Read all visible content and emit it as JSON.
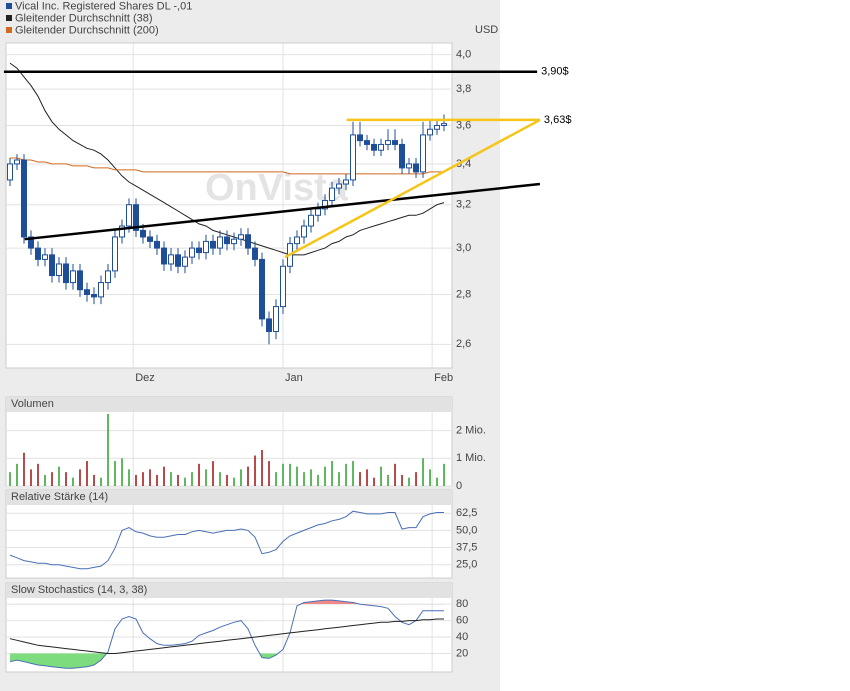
{
  "chart_data": [
    {
      "type": "candlestick",
      "log": true,
      "unit": "USD",
      "watermark": "OnVista",
      "xlim": [
        -0.57,
        63.14
      ],
      "xticks": [
        {
          "value": 17.6,
          "label": "Dez"
        },
        {
          "value": 39,
          "label": "Jan"
        },
        {
          "value": 60.3,
          "label": "Feb"
        }
      ],
      "ylim": [
        2.51,
        4.07
      ],
      "yticks": [
        {
          "value": 2.6,
          "label": "2,6"
        },
        {
          "value": 2.8,
          "label": "2,8"
        },
        {
          "value": 3.0,
          "label": "3,0"
        },
        {
          "value": 3.2,
          "label": "3,2"
        },
        {
          "value": 3.4,
          "label": "3,4"
        },
        {
          "value": 3.6,
          "label": "3,6"
        },
        {
          "value": 3.8,
          "label": "3,8"
        },
        {
          "value": 4.0,
          "label": "4,0"
        }
      ],
      "grid": true,
      "series": [
        {
          "name": "Vical Inc. Registered Shares DL -,01",
          "color": "#1f4e99",
          "open": [
            3.32,
            3.4,
            3.42,
            3.05,
            3.0,
            2.95,
            2.97,
            2.88,
            2.93,
            2.85,
            2.9,
            2.82,
            2.8,
            2.79,
            2.85,
            2.9,
            3.05,
            3.1,
            3.2,
            3.08,
            3.05,
            3.03,
            3.0,
            2.93,
            2.97,
            2.92,
            2.96,
            3.0,
            2.98,
            3.03,
            3.0,
            3.05,
            3.02,
            3.04,
            3.06,
            3.0,
            2.95,
            2.7,
            2.65,
            2.75,
            2.92,
            3.02,
            3.05,
            3.1,
            3.15,
            3.18,
            3.22,
            3.28,
            3.3,
            3.32,
            3.55,
            3.52,
            3.5,
            3.47,
            3.5,
            3.52,
            3.5,
            3.38,
            3.4,
            3.36,
            3.55,
            3.58,
            3.6
          ],
          "high": [
            3.43,
            3.45,
            3.45,
            3.08,
            3.03,
            3.0,
            3.0,
            2.96,
            2.96,
            2.93,
            2.93,
            2.85,
            2.83,
            2.88,
            2.93,
            3.08,
            3.13,
            3.23,
            3.23,
            3.11,
            3.08,
            3.06,
            3.03,
            3.0,
            3.0,
            2.99,
            3.03,
            3.03,
            3.06,
            3.06,
            3.08,
            3.08,
            3.07,
            3.09,
            3.09,
            3.03,
            2.98,
            2.73,
            2.78,
            2.95,
            3.05,
            3.08,
            3.13,
            3.18,
            3.21,
            3.25,
            3.31,
            3.33,
            3.35,
            3.62,
            3.62,
            3.55,
            3.53,
            3.53,
            3.58,
            3.58,
            3.53,
            3.43,
            3.43,
            3.62,
            3.63,
            3.63,
            3.66
          ],
          "low": [
            3.29,
            3.37,
            3.02,
            2.97,
            2.92,
            2.92,
            2.85,
            2.85,
            2.82,
            2.82,
            2.79,
            2.77,
            2.76,
            2.76,
            2.82,
            2.87,
            3.02,
            3.07,
            3.05,
            3.02,
            3.0,
            2.97,
            2.9,
            2.9,
            2.89,
            2.89,
            2.93,
            2.95,
            2.95,
            2.97,
            2.97,
            2.99,
            2.99,
            3.01,
            2.97,
            2.92,
            2.67,
            2.6,
            2.62,
            2.72,
            2.89,
            2.99,
            3.02,
            3.07,
            3.12,
            3.15,
            3.19,
            3.25,
            3.27,
            3.29,
            3.49,
            3.47,
            3.44,
            3.44,
            3.47,
            3.47,
            3.35,
            3.35,
            3.33,
            3.33,
            3.52,
            3.55,
            3.57
          ],
          "close": [
            3.4,
            3.42,
            3.05,
            3.0,
            2.95,
            2.97,
            2.88,
            2.93,
            2.85,
            2.9,
            2.82,
            2.8,
            2.79,
            2.85,
            2.9,
            3.05,
            3.1,
            3.2,
            3.08,
            3.05,
            3.03,
            3.0,
            2.93,
            2.97,
            2.92,
            2.96,
            3.0,
            2.98,
            3.03,
            3.0,
            3.05,
            3.02,
            3.04,
            3.06,
            3.0,
            2.95,
            2.7,
            2.65,
            2.75,
            2.92,
            3.02,
            3.05,
            3.1,
            3.15,
            3.18,
            3.22,
            3.28,
            3.3,
            3.32,
            3.55,
            3.52,
            3.5,
            3.47,
            3.5,
            3.52,
            3.5,
            3.38,
            3.4,
            3.36,
            3.55,
            3.58,
            3.6,
            3.61
          ]
        },
        {
          "name": "Gleitender Durchschnitt (38)",
          "color": "#222222",
          "values": [
            3.95,
            3.92,
            3.87,
            3.82,
            3.76,
            3.68,
            3.62,
            3.58,
            3.55,
            3.52,
            3.5,
            3.48,
            3.47,
            3.45,
            3.42,
            3.38,
            3.34,
            3.31,
            3.29,
            3.27,
            3.25,
            3.23,
            3.21,
            3.19,
            3.17,
            3.15,
            3.13,
            3.11,
            3.1,
            3.08,
            3.07,
            3.06,
            3.05,
            3.04,
            3.03,
            3.02,
            3.01,
            3.0,
            2.99,
            2.98,
            2.97,
            2.97,
            2.97,
            2.98,
            2.99,
            3.0,
            3.02,
            3.03,
            3.05,
            3.06,
            3.08,
            3.09,
            3.1,
            3.11,
            3.12,
            3.13,
            3.14,
            3.15,
            3.15,
            3.16,
            3.18,
            3.2,
            3.21
          ]
        },
        {
          "name": "Gleitender Durchschnitt (200)",
          "color": "#d2691e",
          "values": [
            3.43,
            3.43,
            3.42,
            3.42,
            3.41,
            3.41,
            3.4,
            3.4,
            3.4,
            3.39,
            3.39,
            3.39,
            3.38,
            3.38,
            3.38,
            3.37,
            3.37,
            3.37,
            3.37,
            3.36,
            3.36,
            3.36,
            3.36,
            3.36,
            3.36,
            3.36,
            3.36,
            3.36,
            3.36,
            3.36,
            3.36,
            3.36,
            3.36,
            3.36,
            3.36,
            3.36,
            3.36,
            3.36,
            3.36,
            3.36,
            3.35,
            3.35,
            3.35,
            3.35,
            3.35,
            3.35,
            3.35,
            3.35,
            3.35,
            3.35,
            3.35,
            3.35,
            3.35,
            3.35,
            3.35,
            3.35,
            3.35,
            3.35,
            3.35,
            3.35,
            3.36,
            3.36,
            3.36
          ]
        }
      ],
      "annotations": [
        {
          "label": "3,90$",
          "value": 3.9,
          "color": "#000000",
          "start": -0.86,
          "end": 75.3
        },
        {
          "label": "3,63$",
          "value": 3.63,
          "color": "#f5c518",
          "start": 48.1,
          "end": 75.7
        }
      ],
      "trendlines": [
        {
          "color": "#000000",
          "from": [
            2.1,
            3.04
          ],
          "to": [
            75.7,
            3.3
          ]
        },
        {
          "color": "#f5c518",
          "from": [
            39.3,
            2.96
          ],
          "to": [
            75.7,
            3.63
          ]
        }
      ]
    },
    {
      "type": "bar",
      "title": "Volumen",
      "up_color": "#2ca02c",
      "down_color": "#a01010",
      "ylim": [
        0,
        2.67
      ],
      "yticks": [
        0,
        {
          "value": 1,
          "label": "1 Mio."
        },
        {
          "value": 2,
          "label": "2 Mio."
        }
      ],
      "values": [
        0.5,
        0.8,
        1.2,
        0.6,
        0.8,
        0.4,
        0.5,
        0.7,
        0.5,
        0.3,
        0.6,
        0.9,
        0.4,
        0.3,
        2.6,
        0.9,
        1.0,
        0.6,
        0.4,
        0.5,
        0.6,
        0.4,
        0.7,
        0.5,
        0.4,
        0.3,
        0.5,
        0.8,
        0.6,
        0.9,
        0.5,
        0.4,
        0.3,
        0.6,
        0.7,
        1.1,
        1.3,
        0.9,
        0.5,
        0.8,
        0.8,
        0.7,
        0.5,
        0.6,
        0.4,
        0.7,
        0.9,
        0.5,
        0.8,
        0.9,
        0.5,
        0.6,
        0.3,
        0.7,
        0.4,
        0.8,
        0.4,
        0.3,
        0.5,
        1.0,
        0.6,
        0.3,
        0.8
      ]
    },
    {
      "type": "line",
      "title": "Relative Stärke (14)",
      "ylim": [
        15.3,
        68.5
      ],
      "yticks": [
        {
          "value": 25,
          "label": "25,0"
        },
        {
          "value": 37.5,
          "label": "37,5"
        },
        {
          "value": 50,
          "label": "50,0"
        },
        {
          "value": 62.5,
          "label": "62,5"
        }
      ],
      "series": [
        {
          "color": "#4a6fb5",
          "values": [
            32,
            30,
            28,
            27,
            26,
            26,
            25,
            25,
            24,
            23,
            22,
            22,
            23,
            24,
            28,
            37,
            50,
            52,
            49,
            48,
            46,
            45,
            45,
            46,
            47,
            47,
            49,
            50,
            49,
            48,
            49,
            50,
            50,
            51,
            50,
            45,
            33,
            34,
            36,
            42,
            46,
            48,
            50,
            52,
            54,
            55,
            57,
            58,
            60,
            64,
            63,
            62,
            62,
            62,
            63,
            63,
            51,
            52,
            52,
            60,
            62,
            63,
            63
          ]
        }
      ]
    },
    {
      "type": "line",
      "title": "Slow Stochastics (14, 3, 38)",
      "ylim": [
        -2.5,
        87.5
      ],
      "yticks": [
        20,
        40,
        60,
        80
      ],
      "bands": {
        "low": 20,
        "high": 80,
        "low_color": "#7ddc7d",
        "high_color": "#f08a8a"
      },
      "series": [
        {
          "color": "#4a6fb5",
          "values": [
            10,
            12,
            10,
            8,
            6,
            5,
            4,
            3,
            2,
            2,
            3,
            4,
            6,
            12,
            22,
            50,
            62,
            65,
            62,
            45,
            38,
            32,
            30,
            30,
            31,
            32,
            35,
            42,
            45,
            48,
            52,
            55,
            58,
            60,
            50,
            30,
            15,
            14,
            18,
            25,
            45,
            78,
            82,
            83,
            84,
            85,
            85,
            84,
            83,
            82,
            80,
            79,
            78,
            77,
            75,
            65,
            58,
            55,
            60,
            72,
            72,
            72,
            72
          ]
        },
        {
          "color": "#222222",
          "values": [
            38,
            36,
            34,
            32,
            30,
            29,
            28,
            27,
            26,
            25,
            24,
            23,
            22,
            21,
            20,
            20,
            21,
            22,
            23,
            24,
            25,
            26,
            27,
            28,
            29,
            30,
            31,
            32,
            33,
            34,
            35,
            36,
            37,
            38,
            39,
            40,
            41,
            42,
            43,
            44,
            45,
            46,
            47,
            48,
            49,
            50,
            51,
            52,
            53,
            54,
            55,
            56,
            57,
            58,
            58,
            59,
            59,
            60,
            60,
            61,
            61,
            62,
            62
          ]
        }
      ]
    }
  ]
}
